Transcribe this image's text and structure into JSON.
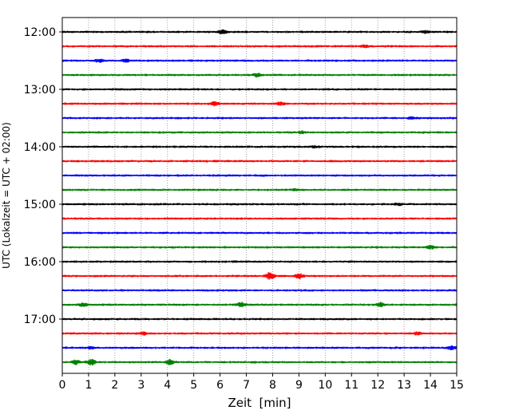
{
  "chart_data": {
    "type": "line",
    "title": "",
    "xlabel": "Zeit  [min]",
    "ylabel": "UTC (Lokalzeit = UTC + 02:00)",
    "xlim": [
      0,
      15
    ],
    "x_ticks": [
      "0",
      "1",
      "2",
      "3",
      "4",
      "5",
      "6",
      "7",
      "8",
      "9",
      "10",
      "11",
      "12",
      "13",
      "14",
      "15"
    ],
    "y_ticks": [
      "12:00",
      "13:00",
      "14:00",
      "15:00",
      "16:00",
      "17:00"
    ],
    "grid": "vertical-dotted",
    "traces": [
      {
        "start": "12:00",
        "color": "#000000",
        "events": [
          {
            "t": 6.1,
            "a": 2.0
          },
          {
            "t": 13.8,
            "a": 1.3
          }
        ]
      },
      {
        "start": "12:15",
        "color": "#ff0000",
        "events": [
          {
            "t": 11.5,
            "a": 1.2
          }
        ]
      },
      {
        "start": "12:30",
        "color": "#0000ff",
        "events": [
          {
            "t": 1.4,
            "a": 1.6
          },
          {
            "t": 2.4,
            "a": 1.6
          }
        ]
      },
      {
        "start": "12:45",
        "color": "#008000",
        "events": [
          {
            "t": 7.4,
            "a": 2.0
          }
        ]
      },
      {
        "start": "13:00",
        "color": "#000000",
        "events": []
      },
      {
        "start": "13:15",
        "color": "#ff0000",
        "events": [
          {
            "t": 5.8,
            "a": 2.0
          },
          {
            "t": 8.3,
            "a": 1.5
          }
        ]
      },
      {
        "start": "13:30",
        "color": "#0000ff",
        "events": [
          {
            "t": 13.3,
            "a": 1.2
          }
        ]
      },
      {
        "start": "13:45",
        "color": "#008000",
        "events": [
          {
            "t": 9.1,
            "a": 1.2
          }
        ]
      },
      {
        "start": "14:00",
        "color": "#000000",
        "events": [
          {
            "t": 9.6,
            "a": 1.1
          }
        ]
      },
      {
        "start": "14:15",
        "color": "#ff0000",
        "events": []
      },
      {
        "start": "14:30",
        "color": "#0000ff",
        "events": []
      },
      {
        "start": "14:45",
        "color": "#008000",
        "events": [
          {
            "t": 8.9,
            "a": 1.0
          }
        ]
      },
      {
        "start": "15:00",
        "color": "#000000",
        "events": [
          {
            "t": 12.8,
            "a": 1.1
          }
        ]
      },
      {
        "start": "15:15",
        "color": "#ff0000",
        "events": []
      },
      {
        "start": "15:30",
        "color": "#0000ff",
        "events": []
      },
      {
        "start": "15:45",
        "color": "#008000",
        "events": [
          {
            "t": 14.0,
            "a": 2.0
          }
        ]
      },
      {
        "start": "16:00",
        "color": "#000000",
        "events": []
      },
      {
        "start": "16:15",
        "color": "#ff0000",
        "events": [
          {
            "t": 7.9,
            "a": 4.5
          },
          {
            "t": 9.0,
            "a": 3.5
          }
        ]
      },
      {
        "start": "16:30",
        "color": "#0000ff",
        "events": []
      },
      {
        "start": "16:45",
        "color": "#008000",
        "events": [
          {
            "t": 0.8,
            "a": 2.0
          },
          {
            "t": 6.8,
            "a": 2.8
          },
          {
            "t": 12.1,
            "a": 2.5
          }
        ]
      },
      {
        "start": "17:00",
        "color": "#000000",
        "events": []
      },
      {
        "start": "17:15",
        "color": "#ff0000",
        "events": [
          {
            "t": 3.1,
            "a": 1.3
          },
          {
            "t": 13.5,
            "a": 1.3
          }
        ]
      },
      {
        "start": "17:30",
        "color": "#0000ff",
        "events": [
          {
            "t": 1.1,
            "a": 1.2
          },
          {
            "t": 14.8,
            "a": 2.0
          }
        ]
      },
      {
        "start": "17:45",
        "color": "#008000",
        "events": [
          {
            "t": 0.5,
            "a": 2.5
          },
          {
            "t": 1.1,
            "a": 3.5
          },
          {
            "t": 4.1,
            "a": 3.0
          }
        ]
      }
    ]
  }
}
